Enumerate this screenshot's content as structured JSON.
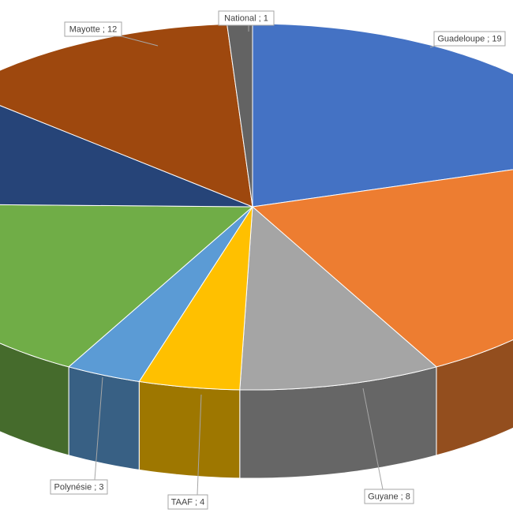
{
  "chart_data": {
    "type": "pie3d",
    "categories": [
      "Guadeloupe",
      null,
      "Guyane",
      "TAAF",
      "Polynésie",
      null,
      null,
      "Mayotte",
      "National"
    ],
    "values": [
      19,
      20,
      8,
      4,
      3,
      16,
      10,
      12,
      1
    ],
    "value_labels": [
      "Guadeloupe ; 19",
      null,
      "Guyane ; 8",
      "TAAF ; 4",
      "Polynésie ; 3",
      null,
      null,
      "Mayotte ; 12",
      "National ; 1"
    ],
    "colors": [
      "#4472c4",
      "#ed7d31",
      "#a5a5a5",
      "#ffc000",
      "#5b9bd5",
      "#70ad47",
      "#264478",
      "#9e480e",
      "#636363"
    ]
  }
}
